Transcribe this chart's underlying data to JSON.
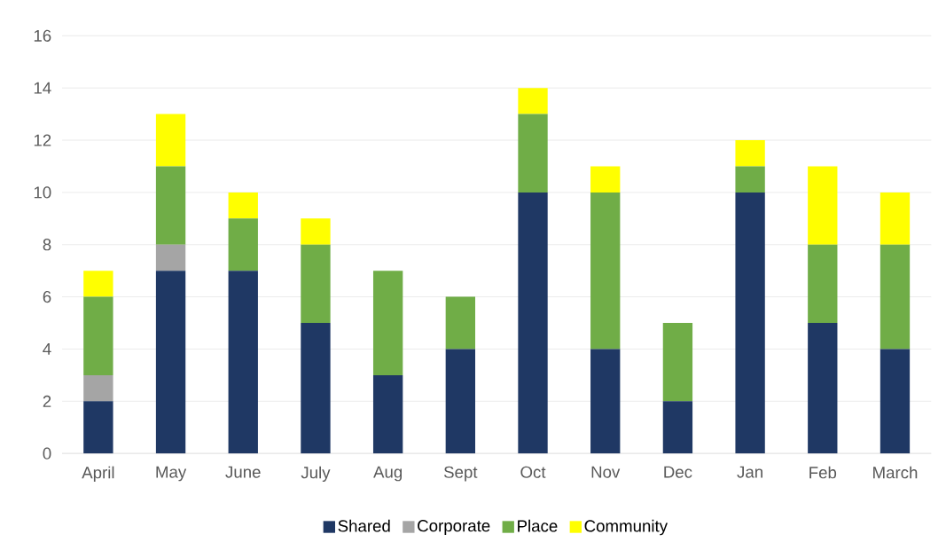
{
  "chart_data": {
    "type": "bar",
    "stacked": true,
    "categories": [
      "April",
      "May",
      "June",
      "July",
      "Aug",
      "Sept",
      "Oct",
      "Nov",
      "Dec",
      "Jan",
      "Feb",
      "March"
    ],
    "series": [
      {
        "name": "Shared",
        "color": "#1f3864",
        "values": [
          2,
          7,
          7,
          5,
          3,
          4,
          10,
          4,
          2,
          10,
          5,
          4
        ]
      },
      {
        "name": "Corporate",
        "color": "#a5a5a5",
        "values": [
          1,
          1,
          0,
          0,
          0,
          0,
          0,
          0,
          0,
          0,
          0,
          0
        ]
      },
      {
        "name": "Place",
        "color": "#70ad47",
        "values": [
          3,
          3,
          2,
          3,
          4,
          2,
          3,
          6,
          3,
          1,
          3,
          4
        ]
      },
      {
        "name": "Community",
        "color": "#ffff00",
        "values": [
          1,
          2,
          1,
          1,
          0,
          0,
          1,
          1,
          0,
          1,
          3,
          2
        ]
      }
    ],
    "ylim": [
      0,
      16
    ],
    "yticks": [
      0,
      2,
      4,
      6,
      8,
      10,
      12,
      14,
      16
    ],
    "grid": "y",
    "legend": "bottom"
  }
}
